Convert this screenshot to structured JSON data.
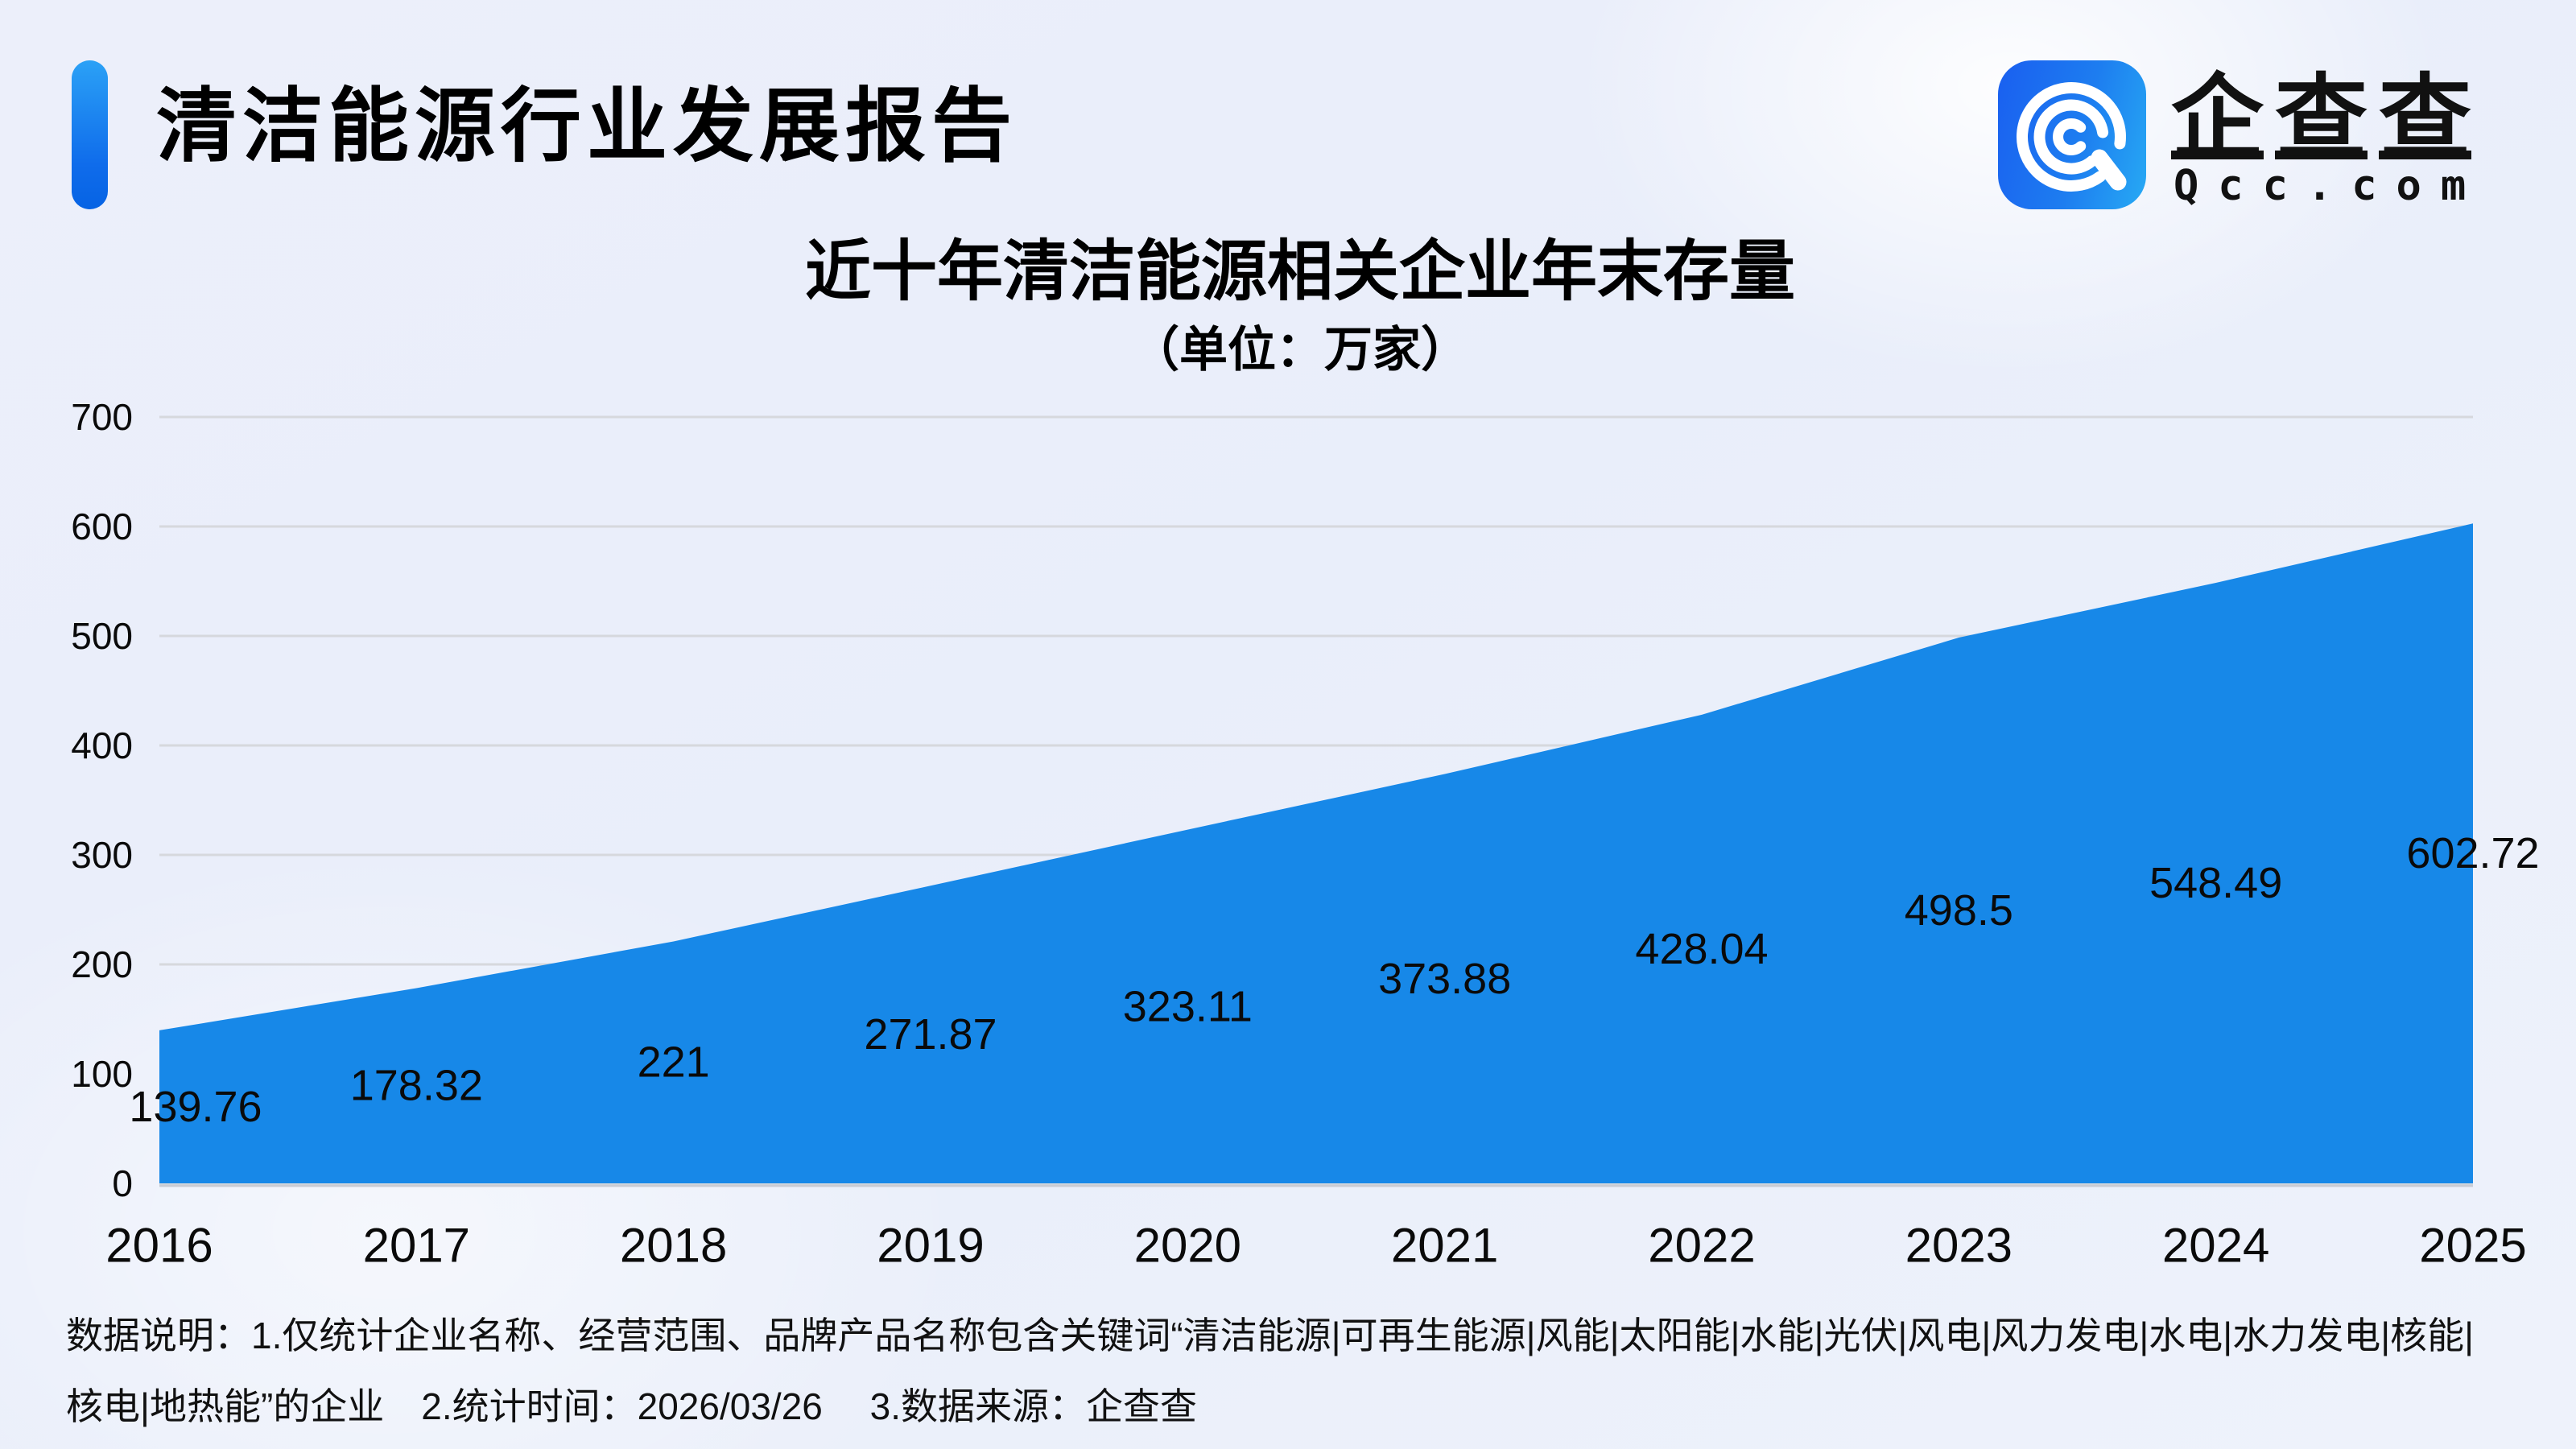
{
  "header": {
    "title": "清洁能源行业发展报告"
  },
  "logo": {
    "name": "企查查",
    "domain": "Qcc.com"
  },
  "chart_data": {
    "type": "area",
    "title": "近十年清洁能源相关企业年末存量",
    "subtitle": "（单位：万家）",
    "categories": [
      "2016",
      "2017",
      "2018",
      "2019",
      "2020",
      "2021",
      "2022",
      "2023",
      "2024",
      "2025"
    ],
    "values": [
      139.76,
      178.32,
      221,
      271.87,
      323.11,
      373.88,
      428.04,
      498.5,
      548.49,
      602.72
    ],
    "labels": [
      "139.76",
      "178.32",
      "221",
      "271.87",
      "323.11",
      "373.88",
      "428.04",
      "498.5",
      "548.49",
      "602.72"
    ],
    "ylim": [
      0,
      700
    ],
    "yticks": [
      0,
      100,
      200,
      300,
      400,
      500,
      600,
      700
    ],
    "grid": true,
    "legend": "none",
    "fill_color": "#1788e8",
    "grid_color": "#d6d8dd",
    "axis_line_color": "#c9ccd4",
    "label_color": "#0a0a0a"
  },
  "footer": {
    "line1": "数据说明：1.仅统计企业名称、经营范围、品牌产品名称包含关键词“清洁能源|可再生能源|风能|太阳能|水能|光伏|风电|风力发电|水电|水力发电|核能|",
    "line2": "核电|地热能”的企业　2.统计时间：2026/03/26　 3.数据来源：企查查"
  }
}
